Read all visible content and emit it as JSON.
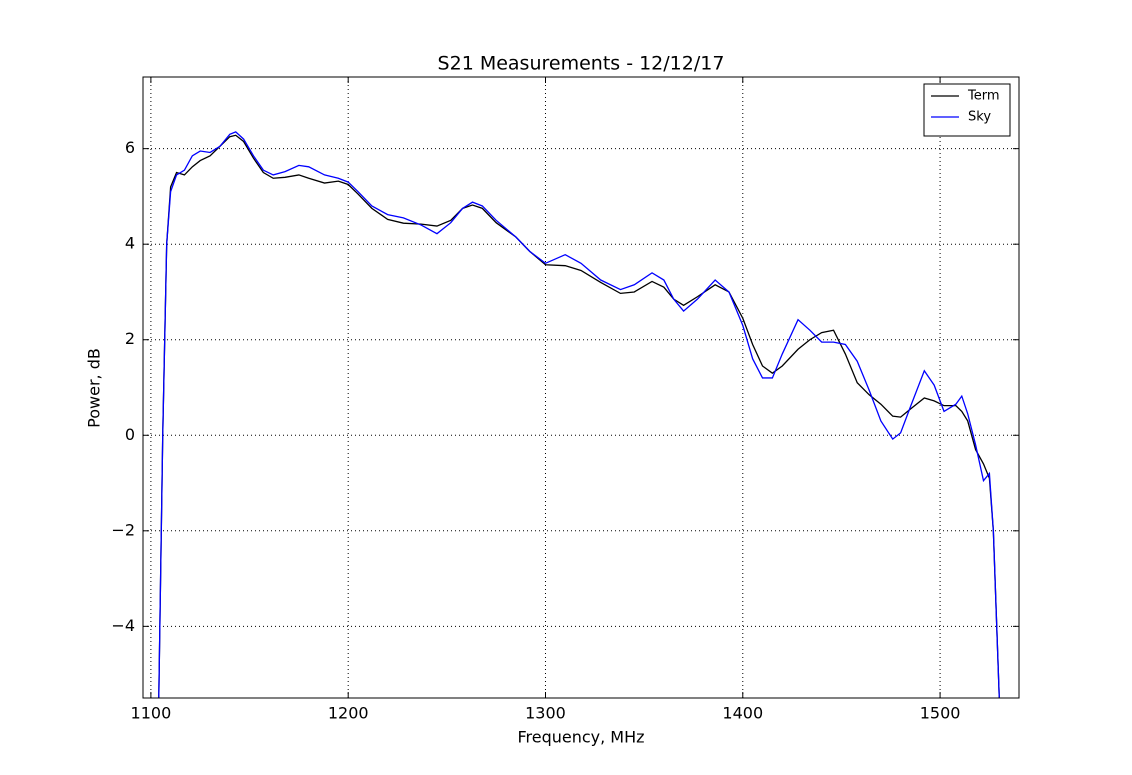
{
  "chart_data": {
    "type": "line",
    "title": "S21 Measurements - 12/12/17",
    "x_label": "Frequency, MHz",
    "y_label": "Power, dB",
    "x": [
      1104,
      1106,
      1108,
      1110,
      1113,
      1117,
      1121,
      1125,
      1130,
      1135,
      1140,
      1143,
      1147,
      1152,
      1157,
      1162,
      1168,
      1175,
      1180,
      1188,
      1195,
      1200,
      1205,
      1212,
      1220,
      1228,
      1237,
      1245,
      1252,
      1258,
      1263,
      1268,
      1275,
      1285,
      1292,
      1300,
      1310,
      1318,
      1328,
      1338,
      1345,
      1354,
      1360,
      1365,
      1370,
      1377,
      1386,
      1393,
      1400,
      1405,
      1410,
      1415,
      1420,
      1428,
      1434,
      1440,
      1446,
      1452,
      1458,
      1464,
      1470,
      1476,
      1480,
      1485,
      1492,
      1497,
      1502,
      1508,
      1511,
      1514,
      1518,
      1522,
      1525,
      1527,
      1530
    ],
    "series": [
      {
        "name": "Term",
        "color": "#000000",
        "values": [
          -5.5,
          0,
          4,
          5.2,
          5.5,
          5.45,
          5.62,
          5.75,
          5.85,
          6.05,
          6.25,
          6.28,
          6.15,
          5.8,
          5.5,
          5.38,
          5.4,
          5.45,
          5.38,
          5.28,
          5.32,
          5.25,
          5.05,
          4.75,
          4.52,
          4.44,
          4.42,
          4.38,
          4.5,
          4.75,
          4.82,
          4.75,
          4.45,
          4.15,
          3.85,
          3.57,
          3.55,
          3.45,
          3.2,
          2.97,
          3.0,
          3.22,
          3.1,
          2.85,
          2.72,
          2.9,
          3.15,
          3.0,
          2.45,
          1.9,
          1.45,
          1.3,
          1.45,
          1.8,
          2.0,
          2.15,
          2.2,
          1.7,
          1.1,
          0.85,
          0.65,
          0.4,
          0.38,
          0.55,
          0.78,
          0.72,
          0.62,
          0.62,
          0.5,
          0.3,
          -0.3,
          -0.6,
          -0.9,
          -2,
          -5.5
        ]
      },
      {
        "name": "Sky",
        "color": "#0000ff",
        "values": [
          -5.5,
          0,
          4,
          5.1,
          5.45,
          5.55,
          5.85,
          5.95,
          5.92,
          6.05,
          6.3,
          6.35,
          6.2,
          5.85,
          5.55,
          5.45,
          5.52,
          5.65,
          5.62,
          5.45,
          5.38,
          5.3,
          5.1,
          4.8,
          4.62,
          4.55,
          4.4,
          4.22,
          4.45,
          4.75,
          4.88,
          4.8,
          4.5,
          4.15,
          3.85,
          3.6,
          3.78,
          3.6,
          3.25,
          3.05,
          3.15,
          3.4,
          3.25,
          2.85,
          2.6,
          2.85,
          3.25,
          3.0,
          2.3,
          1.6,
          1.2,
          1.2,
          1.7,
          2.42,
          2.2,
          1.95,
          1.95,
          1.9,
          1.55,
          0.95,
          0.3,
          -0.08,
          0.05,
          0.6,
          1.35,
          1.05,
          0.5,
          0.65,
          0.82,
          0.45,
          -0.2,
          -0.95,
          -0.8,
          -2,
          -5.5
        ]
      }
    ],
    "xlim": [
      1096,
      1540
    ],
    "xticks": [
      1100,
      1200,
      1300,
      1400,
      1500
    ],
    "ylim": [
      -5.5,
      7.5
    ],
    "yticks": [
      {
        "value": -4,
        "label": "−4"
      },
      {
        "value": -2,
        "label": "−2"
      },
      0,
      2,
      4,
      6
    ],
    "grid": true,
    "legend": "upper right"
  }
}
